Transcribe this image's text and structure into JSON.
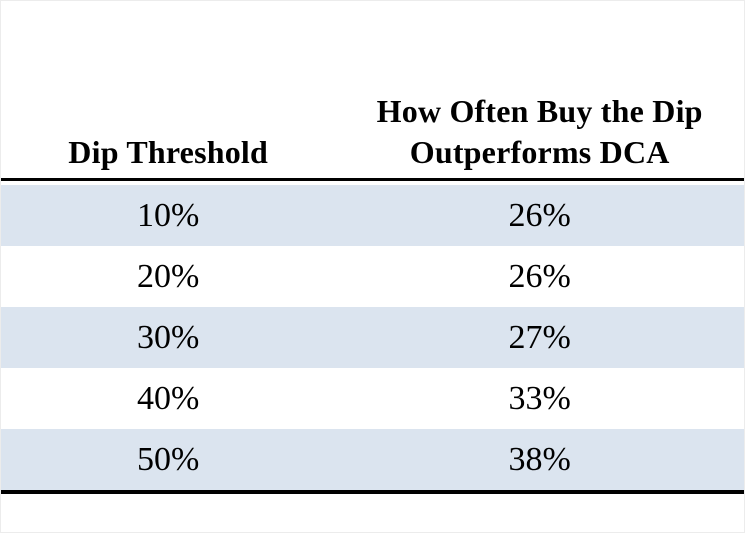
{
  "page": {
    "background": "#ffffff",
    "frame_border_color": "#ececec"
  },
  "table": {
    "columns": [
      {
        "label": "Dip Threshold"
      },
      {
        "label": "How Often Buy the Dip\nOutperforms DCA"
      }
    ],
    "rows": [
      {
        "dip_threshold": "10%",
        "outperformance": "26%"
      },
      {
        "dip_threshold": "20%",
        "outperformance": "26%"
      },
      {
        "dip_threshold": "30%",
        "outperformance": "27%"
      },
      {
        "dip_threshold": "40%",
        "outperformance": "33%"
      },
      {
        "dip_threshold": "50%",
        "outperformance": "38%"
      }
    ],
    "style": {
      "stripe_color": "#dbe4ef",
      "rule_color": "#000000",
      "text_color": "#000000"
    }
  },
  "chart_data": {
    "type": "table",
    "title": "",
    "columns": [
      "Dip Threshold",
      "How Often Buy the Dip Outperforms DCA"
    ],
    "rows": [
      [
        "10%",
        "26%"
      ],
      [
        "20%",
        "26%"
      ],
      [
        "30%",
        "27%"
      ],
      [
        "40%",
        "33%"
      ],
      [
        "50%",
        "38%"
      ]
    ],
    "categories": [
      "10%",
      "20%",
      "30%",
      "40%",
      "50%"
    ],
    "values": [
      26,
      26,
      27,
      33,
      38
    ],
    "value_unit": "%",
    "layout": {
      "striped_rows": true,
      "stripe_color": "#dbe4ef",
      "header_rule": "thick-black",
      "bottom_rule": "thick-black"
    }
  }
}
